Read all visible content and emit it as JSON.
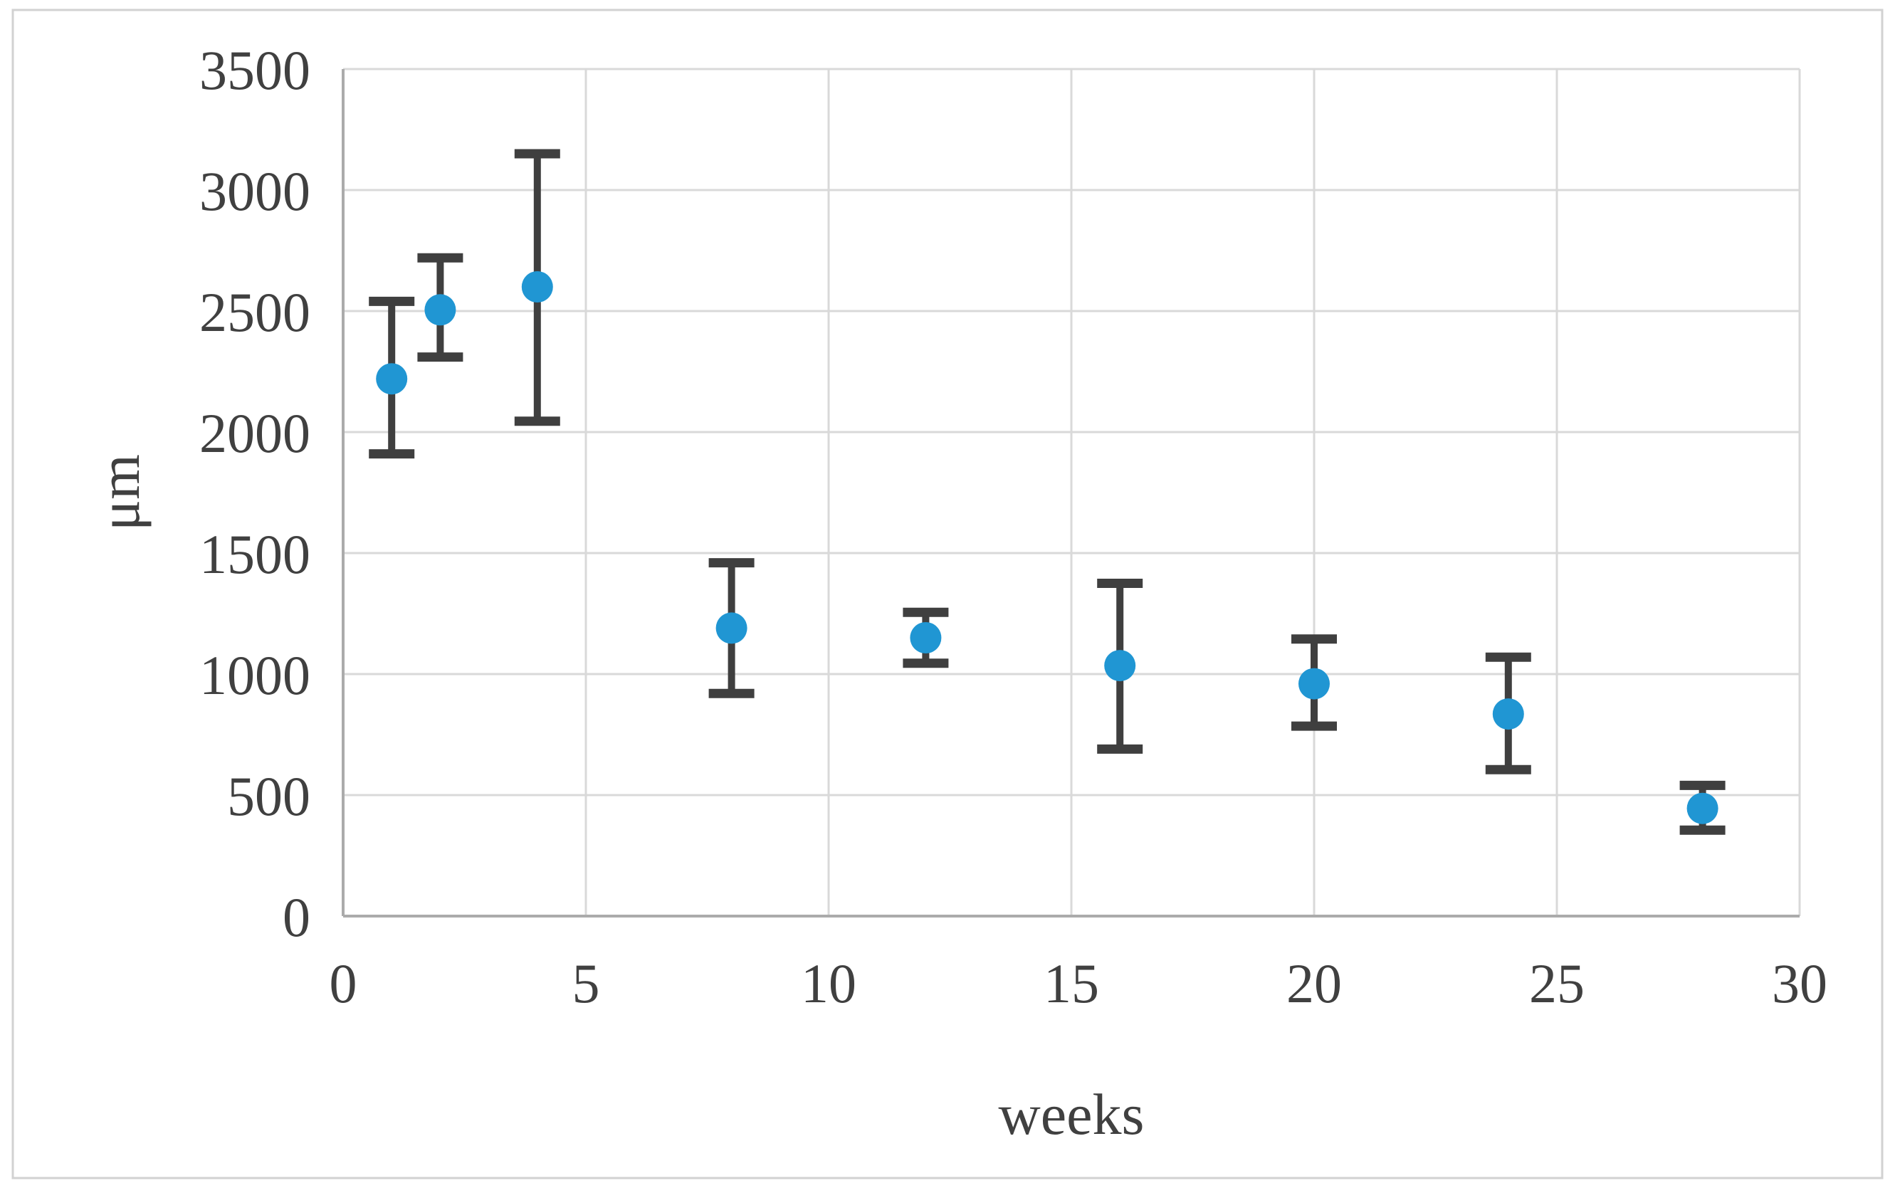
{
  "figure": {
    "background": "#FFFFFF",
    "border_color": "#D2D2D2"
  },
  "chart_data": {
    "type": "scatter",
    "title": "",
    "xlabel": "weeks",
    "ylabel": "μm",
    "xlim": [
      0,
      30
    ],
    "ylim": [
      0,
      3500
    ],
    "x_ticks": [
      0,
      5,
      10,
      15,
      20,
      25,
      30
    ],
    "y_ticks": [
      0,
      500,
      1000,
      1500,
      2000,
      2500,
      3000,
      3500
    ],
    "grid": true,
    "legend": "none",
    "axis_color": "#ABABAB",
    "gridline_color": "#D9D9D9",
    "tick_label_color": "#404040",
    "series": [
      {
        "marker": "circle",
        "marker_color": "#2096D3",
        "error_bar_color": "#3F3F3F",
        "points": [
          {
            "x": 1,
            "y": 2220,
            "y_low": 1910,
            "y_high": 2540
          },
          {
            "x": 2,
            "y": 2505,
            "y_low": 2310,
            "y_high": 2720
          },
          {
            "x": 4,
            "y": 2600,
            "y_low": 2045,
            "y_high": 3150
          },
          {
            "x": 8,
            "y": 1190,
            "y_low": 920,
            "y_high": 1460
          },
          {
            "x": 12,
            "y": 1150,
            "y_low": 1045,
            "y_high": 1255
          },
          {
            "x": 16,
            "y": 1035,
            "y_low": 690,
            "y_high": 1375
          },
          {
            "x": 20,
            "y": 960,
            "y_low": 785,
            "y_high": 1145
          },
          {
            "x": 24,
            "y": 835,
            "y_low": 605,
            "y_high": 1070
          },
          {
            "x": 28,
            "y": 445,
            "y_low": 355,
            "y_high": 540
          }
        ]
      }
    ]
  }
}
